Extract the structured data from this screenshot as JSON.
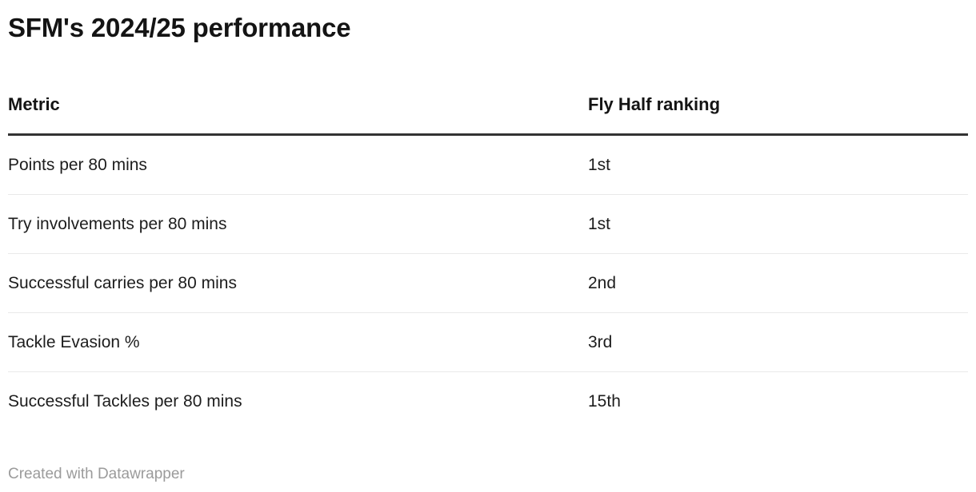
{
  "chart_data": {
    "type": "table",
    "title": "SFM's 2024/25 performance",
    "columns": [
      "Metric",
      "Fly Half ranking"
    ],
    "rows": [
      [
        "Points per 80 mins",
        "1st"
      ],
      [
        "Try involvements per 80 mins",
        "1st"
      ],
      [
        "Successful carries per 80 mins",
        "2nd"
      ],
      [
        "Tackle Evasion %",
        "3rd"
      ],
      [
        "Successful Tackles per 80 mins",
        "15th"
      ]
    ],
    "layout_hints": {
      "grid": "horizontal row dividers only",
      "header_rule": "thick dark line under header"
    }
  },
  "footer": {
    "credit": "Created with Datawrapper"
  },
  "colors": {
    "background": "#ffffff",
    "title_text": "#141414",
    "body_text": "#1d1d1d",
    "header_rule": "#333333",
    "row_divider": "#e9e9e9",
    "footer_text": "#9b9b9b"
  }
}
